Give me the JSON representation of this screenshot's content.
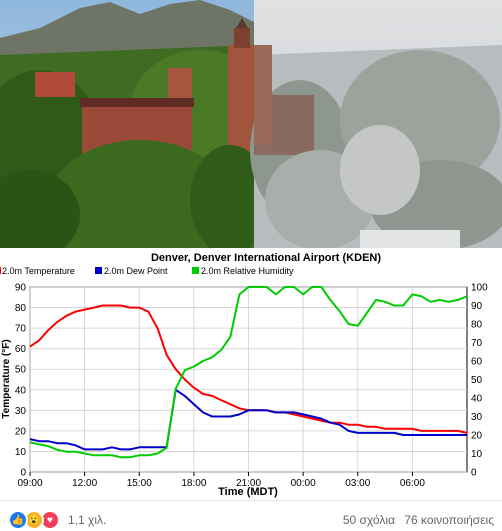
{
  "chart_data": {
    "type": "line",
    "title": "Denver, Denver International Airport (KDEN)",
    "xlabel": "Time (MDT)",
    "ylabel": "Temperature (°F)",
    "ylabel_right": "",
    "ylim": [
      0,
      90
    ],
    "ylim_right": [
      0,
      100
    ],
    "y_ticks": [
      0,
      10,
      20,
      30,
      40,
      50,
      60,
      70,
      80,
      90
    ],
    "y_right_ticks": [
      0,
      10,
      20,
      30,
      40,
      50,
      60,
      70,
      80,
      90,
      100
    ],
    "x_ticks": [
      "09:00",
      "12:00",
      "15:00",
      "18:00",
      "21:00",
      "00:00",
      "03:00",
      "06:00"
    ],
    "grid": true,
    "legend_placement": "top-left",
    "series": [
      {
        "name": "2.0m Temperature",
        "color": "#ff0000",
        "axis": "left",
        "x": [
          0,
          0.5,
          1,
          1.5,
          2,
          2.5,
          3,
          3.5,
          4,
          4.5,
          5,
          5.5,
          6,
          6.5,
          7,
          7.5,
          8,
          8.5,
          9,
          9.5,
          10,
          10.5,
          11,
          11.5,
          12,
          12.5,
          13,
          13.5,
          14,
          14.5,
          15,
          15.5,
          16,
          16.5,
          17,
          17.5,
          18,
          18.5,
          19,
          19.5,
          20,
          20.5,
          21,
          21.5,
          22,
          22.5,
          23,
          23.5,
          24
        ],
        "y": [
          61,
          64,
          69,
          73,
          76,
          78,
          79,
          80,
          81,
          81,
          81,
          80,
          80,
          78,
          70,
          57,
          50,
          45,
          41,
          38,
          37,
          35,
          33,
          31,
          30,
          30,
          30,
          29,
          29,
          28,
          27,
          26,
          25,
          24,
          24,
          23,
          23,
          22,
          22,
          21,
          21,
          21,
          21,
          20,
          20,
          20,
          20,
          20,
          19
        ]
      },
      {
        "name": "2.0m Dew Point",
        "color": "#0000cc",
        "axis": "left",
        "x": [
          0,
          0.5,
          1,
          1.5,
          2,
          2.5,
          3,
          3.5,
          4,
          4.5,
          5,
          5.5,
          6,
          6.5,
          7,
          7.5,
          8,
          8.5,
          9,
          9.5,
          10,
          10.5,
          11,
          11.5,
          12,
          12.5,
          13,
          13.5,
          14,
          14.5,
          15,
          15.5,
          16,
          16.5,
          17,
          17.5,
          18,
          18.5,
          19,
          19.5,
          20,
          20.5,
          21,
          21.5,
          22,
          22.5,
          23,
          23.5,
          24
        ],
        "y": [
          16,
          15,
          15,
          14,
          14,
          13,
          11,
          11,
          11,
          12,
          11,
          11,
          12,
          12,
          12,
          12,
          40,
          37,
          33,
          29,
          27,
          27,
          27,
          28,
          30,
          30,
          30,
          29,
          29,
          29,
          28,
          27,
          26,
          24,
          23,
          20,
          19,
          19,
          19,
          19,
          19,
          18,
          18,
          18,
          18,
          18,
          18,
          18,
          18
        ]
      },
      {
        "name": "2.0m Relative Humidity",
        "color": "#00cc00",
        "axis": "right",
        "x": [
          0,
          0.5,
          1,
          1.5,
          2,
          2.5,
          3,
          3.5,
          4,
          4.5,
          5,
          5.5,
          6,
          6.5,
          7,
          7.5,
          8,
          8.5,
          9,
          9.5,
          10,
          10.5,
          11,
          11.5,
          12,
          12.5,
          13,
          13.5,
          14,
          14.5,
          15,
          15.5,
          16,
          16.5,
          17,
          17.5,
          18,
          18.5,
          19,
          19.5,
          20,
          20.5,
          21,
          21.5,
          22,
          22.5,
          23,
          23.5,
          24
        ],
        "y": [
          16,
          15,
          14,
          12,
          11,
          11,
          10,
          9,
          9,
          9,
          8,
          8,
          9,
          9,
          10,
          13,
          45,
          55,
          57,
          60,
          62,
          66,
          73,
          96,
          100,
          100,
          100,
          96,
          100,
          100,
          96,
          100,
          100,
          93,
          87,
          80,
          79,
          86,
          93,
          92,
          90,
          90,
          96,
          95,
          92,
          93,
          92,
          93,
          95
        ]
      }
    ]
  },
  "photo": {
    "left_scene": "autumn-campus",
    "right_scene": "snowy-campus"
  },
  "social": {
    "reaction_count": "1,1 χιλ.",
    "comments": "50 σχόλια",
    "shares": "76 κοινοποιήσεις",
    "colors": {
      "like": "#1877f2",
      "wow": "#f7b125",
      "love": "#f33e58"
    }
  }
}
